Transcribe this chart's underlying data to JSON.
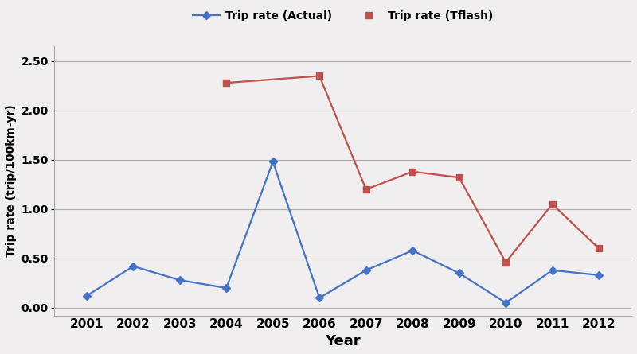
{
  "years": [
    2001,
    2002,
    2003,
    2004,
    2005,
    2006,
    2007,
    2008,
    2009,
    2010,
    2011,
    2012
  ],
  "actual": [
    0.12,
    0.42,
    0.28,
    0.2,
    1.48,
    0.1,
    0.38,
    0.58,
    0.35,
    0.05,
    0.38,
    0.33
  ],
  "tflash_segments": [
    {
      "years": [
        2004,
        2006
      ],
      "vals": [
        2.28,
        2.35
      ]
    },
    {
      "years": [
        2006,
        2007,
        2008,
        2009,
        2010,
        2011,
        2012
      ],
      "vals": [
        2.35,
        1.2,
        1.38,
        1.32,
        0.46,
        1.05,
        0.6
      ]
    }
  ],
  "tflash_points_x": [
    2004,
    2006,
    2007,
    2008,
    2009,
    2010,
    2011,
    2012
  ],
  "tflash_points_y": [
    2.28,
    2.35,
    1.2,
    1.38,
    1.32,
    0.46,
    1.05,
    0.6
  ],
  "actual_color": "#4472c4",
  "tflash_color": "#c0504d",
  "xlabel": "Year",
  "ylabel": "Trip rate (trip/100km-yr)",
  "legend_actual": "Trip rate (Actual)",
  "legend_tflash": "Trip rate (Tflash)",
  "ylim": [
    -0.08,
    2.65
  ],
  "yticks": [
    0.0,
    0.5,
    1.0,
    1.5,
    2.0,
    2.5
  ],
  "ytick_labels": [
    "0.00",
    "0.50",
    "1.00",
    "1.50",
    "2.00",
    "2.50"
  ],
  "background_color": "#f0eeee",
  "grid_color": "#aaaaaa"
}
